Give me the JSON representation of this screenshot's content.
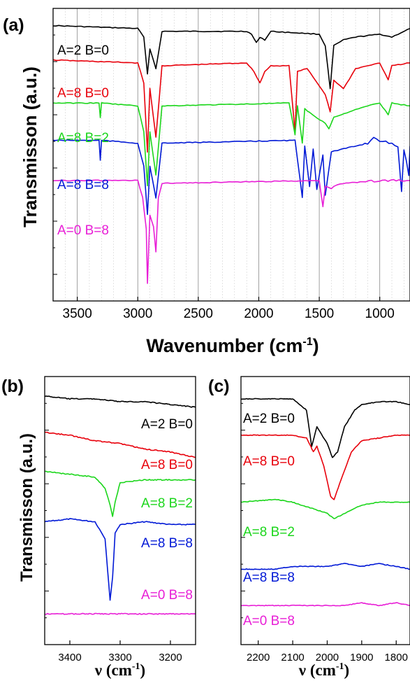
{
  "colors": {
    "black": "#000000",
    "red": "#e8000b",
    "green": "#1bd61b",
    "blue": "#0018d6",
    "magenta": "#e81ed6",
    "grid": "#999999"
  },
  "panels": {
    "a": {
      "tag": "(a)",
      "ylabel": "Transmisson (a.u.)",
      "xlabel": "Wavenumber (cm",
      "xlabel_sup": "-1",
      "xlabel_close": ")",
      "xticks": [
        "3500",
        "3000",
        "2500",
        "2000",
        "1500",
        "1000"
      ]
    },
    "b": {
      "tag": "(b)",
      "ylabel": "Transmisson (a.u.)",
      "xlabel": "ν (cm",
      "xlabel_sup": "-1",
      "xlabel_close": ")",
      "xticks": [
        "3400",
        "3300",
        "3200"
      ]
    },
    "c": {
      "tag": "(c)",
      "xlabel": "ν (cm",
      "xlabel_sup": "-1",
      "xlabel_close": ")",
      "xticks": [
        "2200",
        "2100",
        "2000",
        "1900",
        "1800"
      ]
    }
  },
  "series_labels": [
    "A=2 B=0",
    "A=8 B=0",
    "A=8 B=2",
    "A=8 B=8",
    "A=0 B=8"
  ],
  "chart_data": [
    {
      "type": "line",
      "panel": "a",
      "xlabel": "Wavenumber (cm-1)",
      "ylabel": "Transmisson (a.u.)",
      "xlim": [
        3700,
        750
      ],
      "x_reversed": true,
      "grid": true,
      "series": [
        {
          "name": "A=2 B=0",
          "color": "#000000",
          "x": [
            3700,
            3000,
            2950,
            2920,
            2900,
            2850,
            2800,
            2100,
            2060,
            2020,
            1990,
            1950,
            1900,
            1500,
            1450,
            1410,
            1380,
            1300,
            1200,
            1000,
            900,
            750
          ],
          "y": [
            9.6,
            9.5,
            9.2,
            7.9,
            8.8,
            8.1,
            9.4,
            9.4,
            9.3,
            9.0,
            9.2,
            9.1,
            9.4,
            9.3,
            8.9,
            7.4,
            8.9,
            9.1,
            9.2,
            9.3,
            9.2,
            9.5
          ]
        },
        {
          "name": "A=8 B=0",
          "color": "#e8000b",
          "x": [
            3700,
            3000,
            2950,
            2920,
            2900,
            2850,
            2800,
            2100,
            2040,
            1990,
            1950,
            1900,
            1750,
            1700,
            1680,
            1600,
            1450,
            1410,
            1380,
            1300,
            1200,
            1000,
            930,
            900,
            750
          ],
          "y": [
            8.4,
            8.3,
            7.6,
            5.2,
            7.4,
            5.7,
            8.2,
            8.3,
            8.0,
            7.6,
            8.0,
            8.2,
            8.2,
            5.9,
            8.0,
            8.1,
            7.2,
            6.6,
            7.7,
            7.4,
            8.1,
            8.3,
            7.7,
            8.2,
            8.3
          ]
        },
        {
          "name": "A=8 B=2",
          "color": "#1bd61b",
          "x": [
            3700,
            3320,
            3310,
            3300,
            3000,
            2950,
            2920,
            2900,
            2850,
            2800,
            1750,
            1700,
            1680,
            1640,
            1620,
            1560,
            1450,
            1420,
            1380,
            1250,
            1100,
            1000,
            930,
            900,
            750
          ],
          "y": [
            6.9,
            6.9,
            6.4,
            6.9,
            6.8,
            5.9,
            4.0,
            5.9,
            4.4,
            6.8,
            6.9,
            5.8,
            6.8,
            5.5,
            6.7,
            6.5,
            6.2,
            6.0,
            6.4,
            6.6,
            6.8,
            6.9,
            6.5,
            6.9,
            6.8
          ]
        },
        {
          "name": "A=8 B=8",
          "color": "#0018d6",
          "x": [
            3700,
            3320,
            3310,
            3300,
            3000,
            2950,
            2920,
            2900,
            2850,
            2800,
            1700,
            1640,
            1620,
            1580,
            1550,
            1520,
            1470,
            1450,
            1400,
            1300,
            1100,
            1050,
            1000,
            850,
            820,
            800,
            760,
            750
          ],
          "y": [
            5.6,
            5.6,
            4.9,
            5.6,
            5.5,
            4.7,
            3.0,
            4.7,
            3.6,
            5.5,
            5.6,
            3.6,
            5.4,
            4.0,
            5.3,
            3.9,
            5.1,
            3.7,
            5.2,
            5.3,
            5.5,
            5.7,
            5.6,
            5.4,
            3.8,
            5.3,
            4.4,
            5.4
          ]
        },
        {
          "name": "A=0 B=8",
          "color": "#e81ed6",
          "x": [
            3700,
            3000,
            2960,
            2930,
            2920,
            2900,
            2870,
            2850,
            2830,
            2800,
            1500,
            1470,
            1450,
            1400,
            1380,
            1300,
            1000,
            750
          ],
          "y": [
            4.2,
            4.2,
            3.6,
            2.5,
            0.6,
            3.0,
            2.6,
            1.7,
            3.6,
            4.1,
            4.2,
            3.3,
            4.0,
            3.9,
            4.0,
            4.1,
            4.2,
            4.2
          ]
        }
      ]
    },
    {
      "type": "line",
      "panel": "b",
      "xlabel": "ν (cm-1)",
      "ylabel": "Transmisson (a.u.)",
      "xlim": [
        3450,
        3150
      ],
      "x_reversed": true,
      "series": [
        {
          "name": "A=2 B=0",
          "color": "#000000",
          "x": [
            3450,
            3400,
            3350,
            3300,
            3250,
            3200,
            3150
          ],
          "y": [
            9.7,
            9.6,
            9.6,
            9.5,
            9.5,
            9.4,
            9.3
          ]
        },
        {
          "name": "A=8 B=0",
          "color": "#e8000b",
          "x": [
            3450,
            3400,
            3350,
            3300,
            3250,
            3200,
            3150
          ],
          "y": [
            8.4,
            8.3,
            8.1,
            8.0,
            7.8,
            7.7,
            7.5
          ]
        },
        {
          "name": "A=8 B=2",
          "color": "#1bd61b",
          "x": [
            3450,
            3400,
            3350,
            3330,
            3320,
            3315,
            3310,
            3300,
            3250,
            3200,
            3150
          ],
          "y": [
            7.0,
            6.9,
            6.8,
            6.4,
            5.8,
            5.4,
            5.9,
            6.6,
            6.7,
            6.7,
            6.7
          ]
        },
        {
          "name": "A=8 B=8",
          "color": "#0018d6",
          "x": [
            3450,
            3400,
            3350,
            3330,
            3325,
            3320,
            3315,
            3310,
            3300,
            3250,
            3200,
            3150
          ],
          "y": [
            5.2,
            5.3,
            5.2,
            4.6,
            3.5,
            2.4,
            3.2,
            4.8,
            5.1,
            5.2,
            5.1,
            5.1
          ]
        },
        {
          "name": "A=0 B=8",
          "color": "#e81ed6",
          "x": [
            3450,
            3400,
            3350,
            3300,
            3250,
            3200,
            3150
          ],
          "y": [
            1.9,
            1.9,
            1.9,
            1.9,
            1.9,
            1.9,
            1.9
          ]
        }
      ]
    },
    {
      "type": "line",
      "panel": "c",
      "xlabel": "ν (cm-1)",
      "xlim": [
        2250,
        1760
      ],
      "x_reversed": true,
      "series": [
        {
          "name": "A=2 B=0",
          "color": "#000000",
          "x": [
            2250,
            2100,
            2060,
            2045,
            2030,
            2000,
            1985,
            1970,
            1950,
            1920,
            1900,
            1850,
            1800,
            1760
          ],
          "y": [
            9.6,
            9.6,
            9.2,
            7.9,
            8.6,
            8.0,
            7.5,
            7.7,
            8.6,
            9.2,
            9.4,
            9.5,
            9.5,
            9.4
          ]
        },
        {
          "name": "A=8 B=0",
          "color": "#e8000b",
          "x": [
            2250,
            2100,
            2060,
            2040,
            2030,
            2010,
            1990,
            1980,
            1960,
            1930,
            1900,
            1850,
            1800,
            1760
          ],
          "y": [
            8.3,
            8.3,
            8.2,
            7.7,
            7.9,
            7.2,
            6.1,
            6.0,
            6.7,
            7.7,
            8.1,
            8.2,
            8.3,
            8.3
          ]
        },
        {
          "name": "A=8 B=2",
          "color": "#1bd61b",
          "x": [
            2250,
            2150,
            2100,
            2050,
            2000,
            1980,
            1950,
            1900,
            1850,
            1800,
            1760
          ],
          "y": [
            5.9,
            6.0,
            5.9,
            5.7,
            5.5,
            5.3,
            5.5,
            5.8,
            5.9,
            5.9,
            5.9
          ]
        },
        {
          "name": "A=8 B=8",
          "color": "#0018d6",
          "x": [
            2250,
            2150,
            2100,
            2050,
            2000,
            1950,
            1900,
            1850,
            1800,
            1760
          ],
          "y": [
            3.5,
            3.5,
            3.6,
            3.6,
            3.6,
            3.7,
            3.6,
            3.7,
            3.6,
            3.5
          ]
        },
        {
          "name": "A=0 B=8",
          "color": "#e81ed6",
          "x": [
            2250,
            2150,
            2100,
            2050,
            2000,
            1950,
            1900,
            1850,
            1800,
            1760
          ],
          "y": [
            2.2,
            2.2,
            2.2,
            2.2,
            2.2,
            2.2,
            2.3,
            2.2,
            2.3,
            2.2
          ]
        }
      ]
    }
  ]
}
